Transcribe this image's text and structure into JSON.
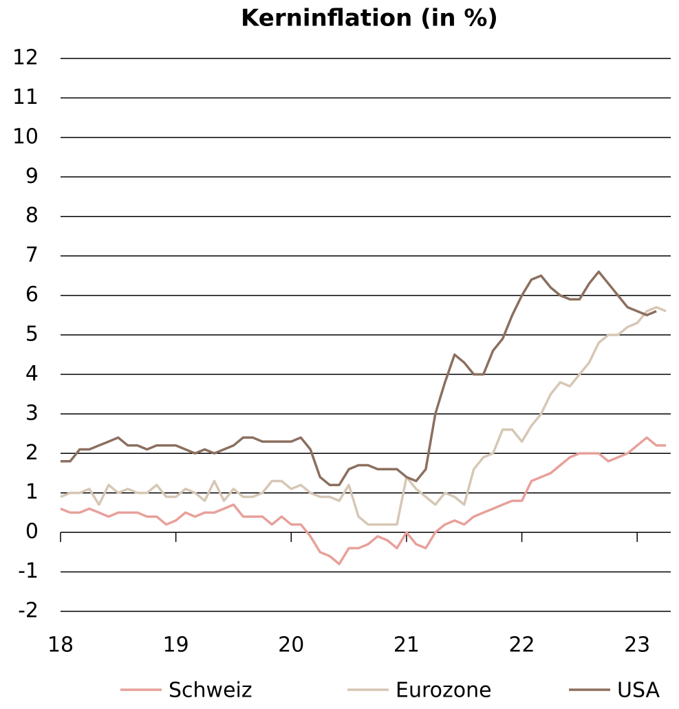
{
  "chart_data": {
    "type": "line",
    "title": "Kerninflation (in %)",
    "categories": [
      "18",
      null,
      null,
      null,
      null,
      null,
      null,
      null,
      null,
      null,
      null,
      null,
      "19",
      null,
      null,
      null,
      null,
      null,
      null,
      null,
      null,
      null,
      null,
      null,
      "20",
      null,
      null,
      null,
      null,
      null,
      null,
      null,
      null,
      null,
      null,
      null,
      "21",
      null,
      null,
      null,
      null,
      null,
      null,
      null,
      null,
      null,
      null,
      null,
      "22",
      null,
      null,
      null,
      null,
      null,
      null,
      null,
      null,
      null,
      null,
      null,
      "23",
      null,
      null,
      null
    ],
    "series": [
      {
        "name": "Schweiz",
        "color": "#e8a09a",
        "values": [
          0.6,
          0.5,
          0.5,
          0.6,
          0.5,
          0.4,
          0.5,
          0.5,
          0.5,
          0.4,
          0.4,
          0.2,
          0.3,
          0.5,
          0.4,
          0.5,
          0.5,
          0.6,
          0.7,
          0.4,
          0.4,
          0.4,
          0.2,
          0.4,
          0.2,
          0.2,
          -0.1,
          -0.5,
          -0.6,
          -0.8,
          -0.4,
          -0.4,
          -0.3,
          -0.1,
          -0.2,
          -0.4,
          0.0,
          -0.3,
          -0.4,
          0.0,
          0.2,
          0.3,
          0.2,
          0.4,
          0.5,
          0.6,
          0.7,
          0.8,
          0.8,
          1.3,
          1.4,
          1.5,
          1.7,
          1.9,
          2.0,
          2.0,
          2.0,
          1.8,
          1.9,
          2.0,
          2.2,
          2.4,
          2.2,
          2.2
        ]
      },
      {
        "name": "Eurozone",
        "color": "#d6c7b5",
        "values": [
          0.9,
          1.0,
          1.0,
          1.1,
          0.7,
          1.2,
          1.0,
          1.1,
          1.0,
          1.0,
          1.2,
          0.9,
          0.9,
          1.1,
          1.0,
          0.8,
          1.3,
          0.8,
          1.1,
          0.9,
          0.9,
          1.0,
          1.3,
          1.3,
          1.1,
          1.2,
          1.0,
          0.9,
          0.9,
          0.8,
          1.2,
          0.4,
          0.2,
          0.2,
          0.2,
          0.2,
          1.4,
          1.1,
          0.9,
          0.7,
          1.0,
          0.9,
          0.7,
          1.6,
          1.9,
          2.0,
          2.6,
          2.6,
          2.3,
          2.7,
          3.0,
          3.5,
          3.8,
          3.7,
          4.0,
          4.3,
          4.8,
          5.0,
          5.0,
          5.2,
          5.3,
          5.6,
          5.7,
          5.6
        ]
      },
      {
        "name": "USA",
        "color": "#8b6f5e",
        "values": [
          1.8,
          1.8,
          2.1,
          2.1,
          2.2,
          2.3,
          2.4,
          2.2,
          2.2,
          2.1,
          2.2,
          2.2,
          2.2,
          2.1,
          2.0,
          2.1,
          2.0,
          2.1,
          2.2,
          2.4,
          2.4,
          2.3,
          2.3,
          2.3,
          2.3,
          2.4,
          2.1,
          1.4,
          1.2,
          1.2,
          1.6,
          1.7,
          1.7,
          1.6,
          1.6,
          1.6,
          1.4,
          1.3,
          1.6,
          3.0,
          3.8,
          4.5,
          4.3,
          4.0,
          4.0,
          4.6,
          4.9,
          5.5,
          6.0,
          6.4,
          6.5,
          6.2,
          6.0,
          5.9,
          5.9,
          6.3,
          6.6,
          6.3,
          6.0,
          5.7,
          5.6,
          5.5,
          5.6,
          null
        ]
      }
    ],
    "ylim": [
      -2,
      12
    ],
    "yticks": [
      -2,
      -1,
      0,
      1,
      2,
      3,
      4,
      5,
      6,
      7,
      8,
      9,
      10,
      11,
      12
    ],
    "grid": true,
    "legend": "bottom"
  }
}
